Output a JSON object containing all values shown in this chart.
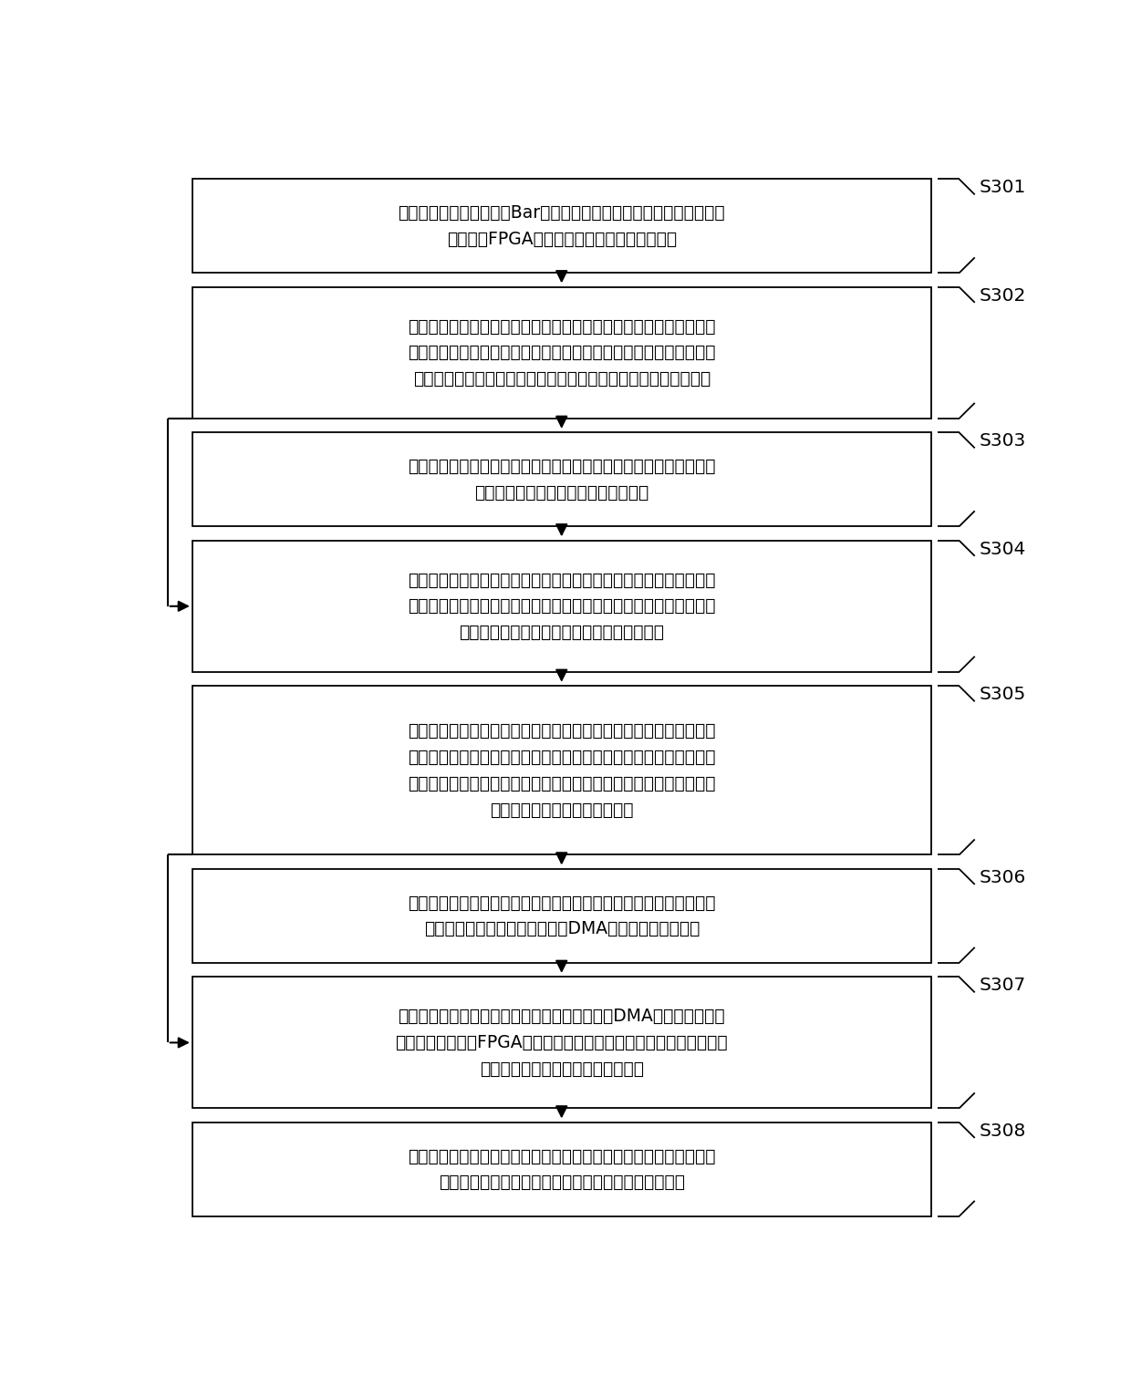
{
  "bg_color": "#ffffff",
  "box_color": "#ffffff",
  "box_edge_color": "#000000",
  "text_color": "#000000",
  "arrow_color": "#000000",
  "label_color": "#000000",
  "steps": [
    {
      "id": "S301",
      "text": "双端内存同步器通过读写Bar空间映射在主机端的第一地址空间，建立\n主机端与FPGA加速器之间的内存同步通信链路",
      "lines": 2
    },
    {
      "id": "S302",
      "text": "主机端从第一地址空间读取第一状态信息，根据第一状态信息确定上\n一数据帧号和当前数据帧号；通过判断上一数据帧号与当前数据帧号\n之间的差值是否为预设阈值，对内存同步通信链路进行可靠性校验",
      "lines": 3
    },
    {
      "id": "S303",
      "text": "若内存同步通信链路在预设时间内未通过可靠性校验，则主机端继续\n搬移数据至预设内存空间直至一帧结束",
      "lines": 2
    },
    {
      "id": "S304",
      "text": "若所述内存同步通信链路在预设时间内通过可靠性校验，主机端向预\n设内存空间搬移数据，根据第一地址空间的第一状态信息生成第二状\n态信息，并将第二状态信息写入第二地址空间",
      "lines": 3
    },
    {
      "id": "S305",
      "text": "双端内存同步器获取所述第二地址空间上的第二状态信息，根据所述\n第二状态信息确定当前数据帧号和下一数据帧号；通过判断所述当前\n数据帧号和所述下一数据帧号之间的差值是否为预设阈值，对所述内\n存同步通信链路进行可靠性校验",
      "lines": 4
    },
    {
      "id": "S306",
      "text": "若所述内存同步通信链路未通过可靠性校验，则向所述第二地址空间\n写入第三状态信息，以停止调用DMA进行数据搬移的操作",
      "lines": 2
    },
    {
      "id": "S307",
      "text": "若所述内存同步通信链路通过可靠性校验，调用DMA将所述预设内存\n空间的数据搬移至FPGA加速器的内存空间，并将所述第二状态信息拷\n贝至所述第一地址空间，以实现同步",
      "lines": 3
    },
    {
      "id": "S308",
      "text": "若主机端向所述第二地址空间写入第三状态信息，双端内存同步器获\n取所述第二地址空间上的第三状态信息之后，结束同步",
      "lines": 2
    }
  ],
  "loop_arrows": [
    {
      "from_step": "S302",
      "to_step": "S304"
    },
    {
      "from_step": "S305",
      "to_step": "S307"
    }
  ],
  "font_size": 13.5,
  "label_font_size": 14.5
}
